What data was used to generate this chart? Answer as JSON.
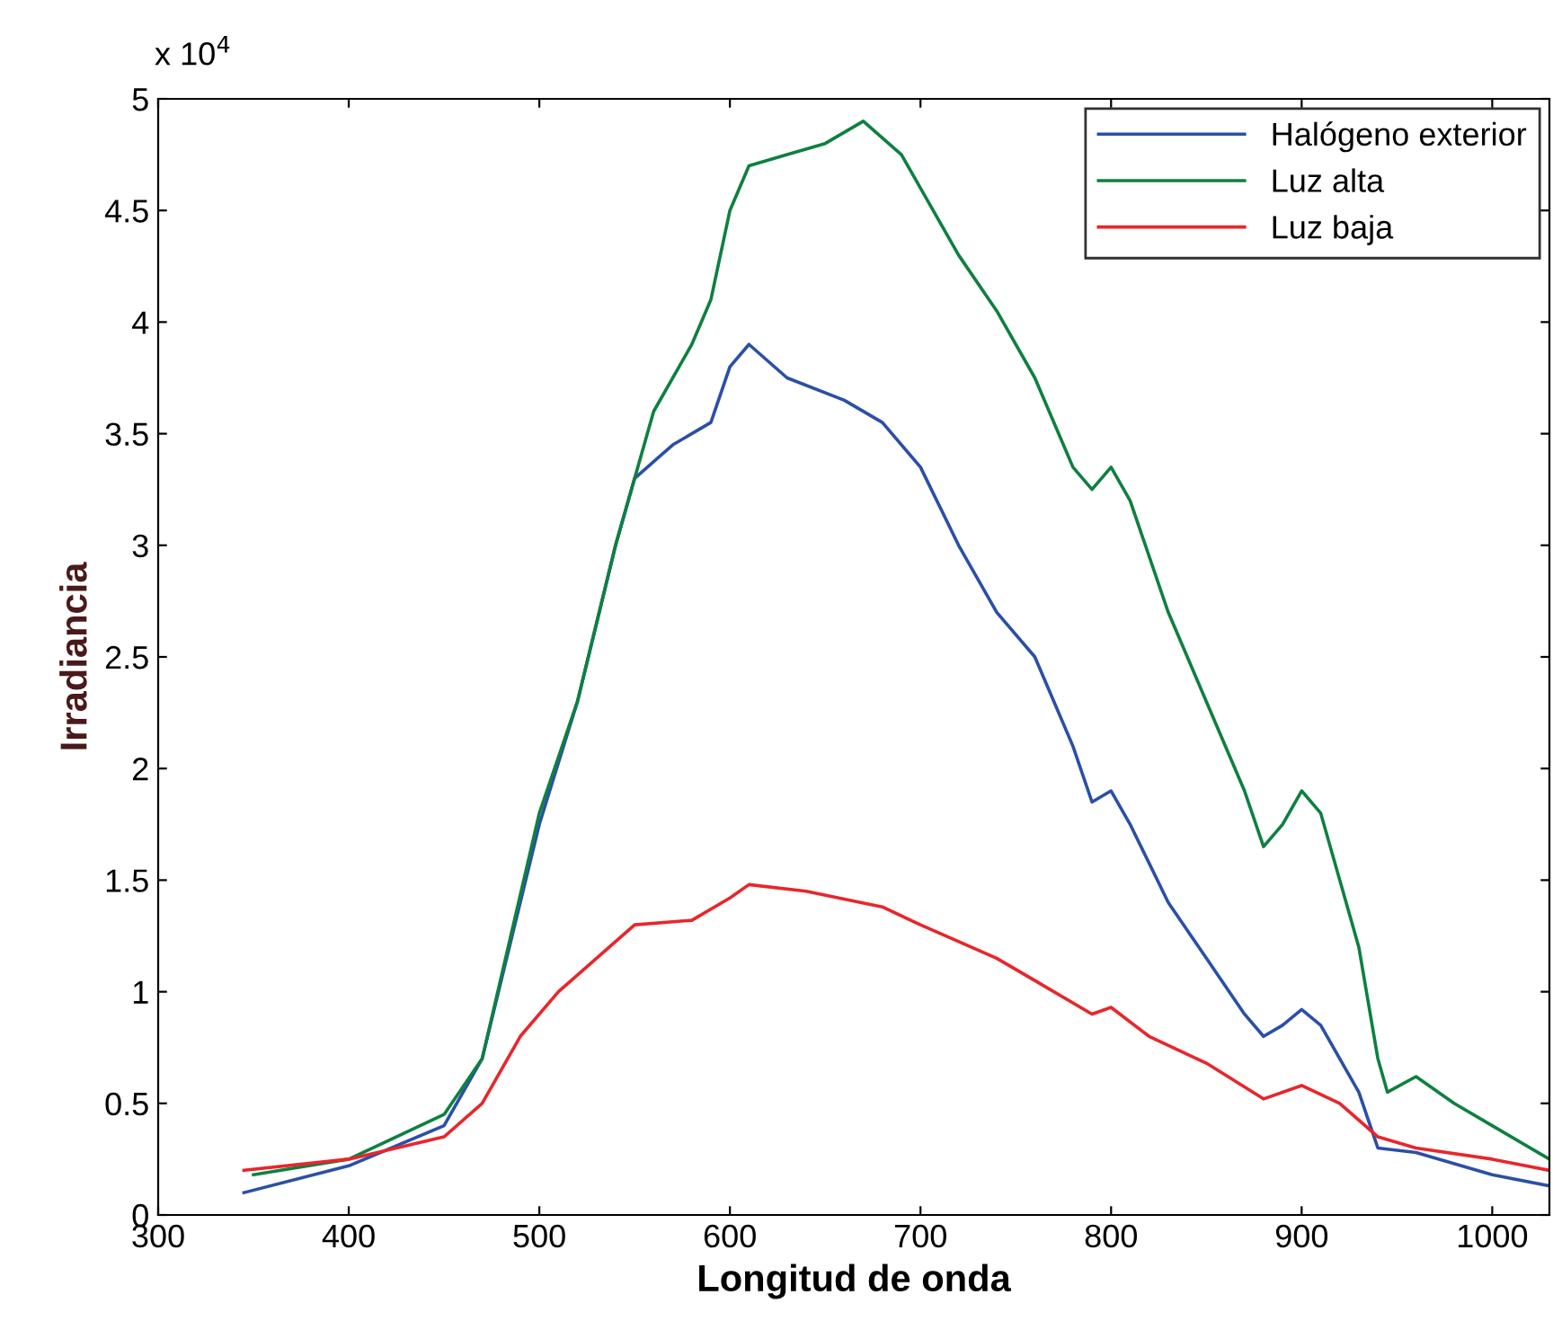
{
  "chart_data": {
    "type": "line",
    "xlabel": "Longitud de onda",
    "ylabel": "Irradiancia",
    "annotations": [
      "x 10$^{4}$"
    ],
    "xlim": [
      300,
      1030
    ],
    "xticks": [
      300,
      400,
      500,
      600,
      700,
      800,
      900,
      1000
    ],
    "ylim": [
      0,
      5
    ],
    "yticks": [
      0,
      0.5,
      1,
      1.5,
      2,
      2.5,
      3,
      3.5,
      4,
      4.5,
      5
    ],
    "grid": false,
    "legend": "top right",
    "marker": "none",
    "line_style": "solid",
    "series": [
      {
        "name": "Halógeno exterior",
        "color": "#2b4fa8",
        "x": [
          345,
          400,
          450,
          470,
          500,
          520,
          540,
          550,
          570,
          590,
          600,
          610,
          630,
          660,
          680,
          700,
          720,
          740,
          760,
          780,
          790,
          800,
          810,
          830,
          850,
          870,
          880,
          890,
          900,
          910,
          930,
          940,
          960,
          1000,
          1030
        ],
        "values": [
          0.1,
          0.22,
          0.4,
          0.7,
          1.75,
          2.3,
          3.0,
          3.3,
          3.45,
          3.55,
          3.8,
          3.9,
          3.75,
          3.65,
          3.55,
          3.35,
          3.0,
          2.7,
          2.5,
          2.1,
          1.85,
          1.9,
          1.75,
          1.4,
          1.15,
          0.9,
          0.8,
          0.85,
          0.92,
          0.85,
          0.55,
          0.3,
          0.28,
          0.18,
          0.13
        ]
      },
      {
        "name": "Luz alta",
        "color": "#0e8040",
        "x": [
          350,
          400,
          450,
          470,
          500,
          520,
          540,
          560,
          580,
          590,
          600,
          610,
          630,
          650,
          670,
          690,
          700,
          720,
          740,
          760,
          780,
          790,
          800,
          810,
          830,
          850,
          870,
          880,
          890,
          900,
          910,
          930,
          940,
          945,
          960,
          980,
          1000,
          1030
        ],
        "values": [
          0.18,
          0.25,
          0.45,
          0.7,
          1.8,
          2.3,
          3.0,
          3.6,
          3.9,
          4.1,
          4.5,
          4.7,
          4.75,
          4.8,
          4.9,
          4.75,
          4.6,
          4.3,
          4.05,
          3.75,
          3.35,
          3.25,
          3.35,
          3.2,
          2.7,
          2.3,
          1.9,
          1.65,
          1.75,
          1.9,
          1.8,
          1.2,
          0.7,
          0.55,
          0.62,
          0.5,
          0.4,
          0.25
        ]
      },
      {
        "name": "Luz baja",
        "color": "#e8262b",
        "x": [
          345,
          400,
          450,
          470,
          490,
          510,
          530,
          550,
          580,
          600,
          610,
          640,
          680,
          700,
          740,
          760,
          790,
          800,
          820,
          850,
          880,
          900,
          920,
          940,
          960,
          1000,
          1030
        ],
        "values": [
          0.2,
          0.25,
          0.35,
          0.5,
          0.8,
          1.0,
          1.15,
          1.3,
          1.32,
          1.42,
          1.48,
          1.45,
          1.38,
          1.3,
          1.15,
          1.05,
          0.9,
          0.93,
          0.8,
          0.68,
          0.52,
          0.58,
          0.5,
          0.35,
          0.3,
          0.25,
          0.2
        ]
      }
    ]
  }
}
